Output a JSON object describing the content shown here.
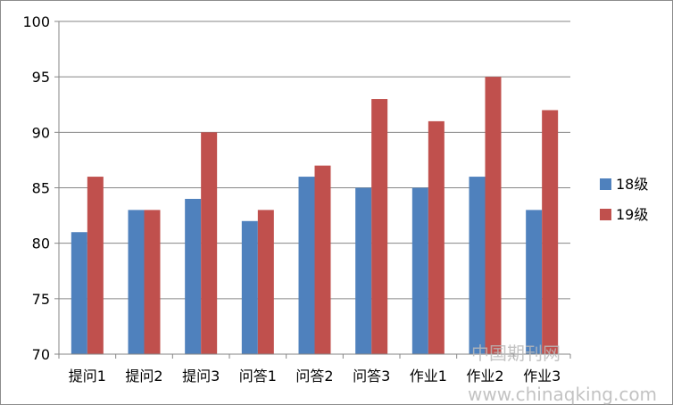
{
  "chart_data": {
    "type": "bar",
    "title": "",
    "xlabel": "",
    "ylabel": "",
    "categories": [
      "提问1",
      "提问2",
      "提问3",
      "问答1",
      "问答2",
      "问答3",
      "作业1",
      "作业2",
      "作业3"
    ],
    "series": [
      {
        "name": "18级",
        "color": "#4f81bd",
        "values": [
          81,
          83,
          84,
          82,
          86,
          85,
          85,
          86,
          83
        ]
      },
      {
        "name": "19级",
        "color": "#c0504d",
        "values": [
          86,
          83,
          90,
          83,
          87,
          93,
          91,
          95,
          92
        ]
      }
    ],
    "ylim": [
      70,
      100
    ],
    "yticks": [
      70,
      75,
      80,
      85,
      90,
      95,
      100
    ],
    "grid": true,
    "legend_position": "right"
  },
  "watermark": {
    "line1": "中国期刊网",
    "line2": "www.chinaqking.com"
  },
  "colors": {
    "grid": "#868686",
    "axis": "#868686"
  }
}
